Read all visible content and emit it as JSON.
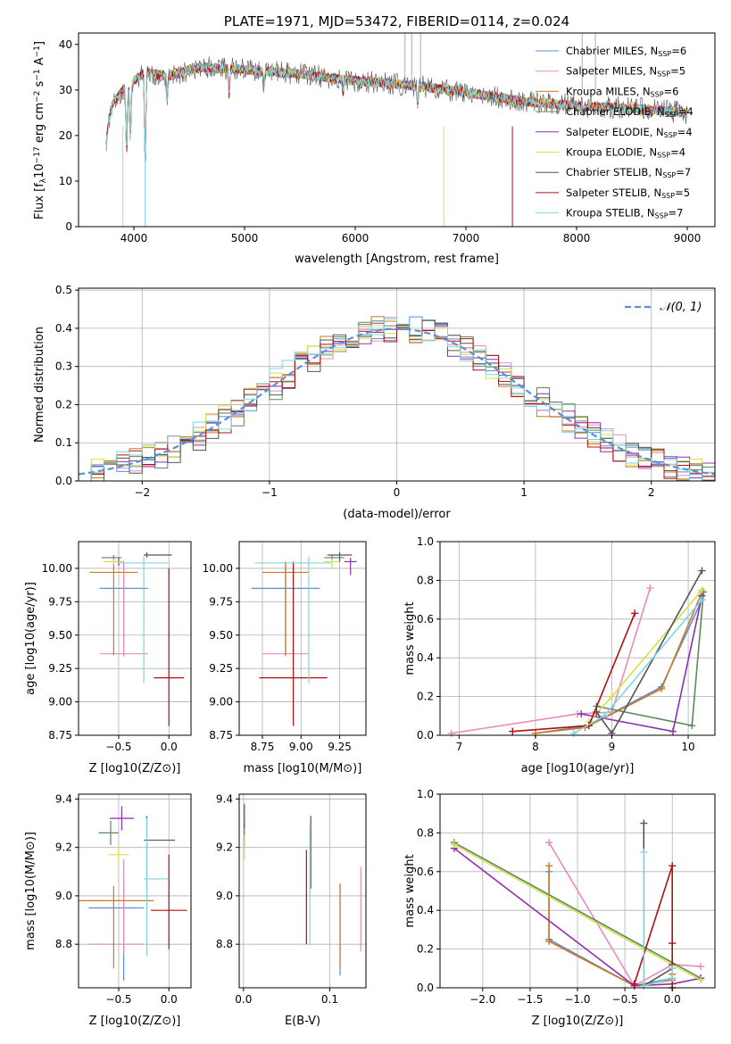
{
  "chart_data": [
    {
      "id": "spectrum",
      "type": "line",
      "title": "PLATE=1971, MJD=53472, FIBERID=0114, z=0.024",
      "xlabel": "wavelength [Angstrom, rest frame]",
      "ylabel_parts": [
        "Flux [f",
        "λ",
        "10",
        "−17",
        " erg cm",
        "−2",
        " s",
        "−1",
        " A",
        "−1",
        "]"
      ],
      "xlim": [
        3500,
        9250
      ],
      "ylim": [
        0,
        42.5
      ],
      "xticks": [
        4000,
        5000,
        6000,
        7000,
        8000,
        9000
      ],
      "yticks": [
        0,
        10,
        20,
        30,
        40
      ],
      "legend_position": "upper right",
      "continuum": {
        "x": [
          3750,
          3900,
          4100,
          4300,
          4600,
          5000,
          5500,
          6000,
          6500,
          7000,
          7500,
          8000,
          8500,
          9000
        ],
        "y": [
          25,
          30,
          34,
          33,
          35,
          34.5,
          33.5,
          32,
          31,
          29.5,
          27.5,
          26.5,
          26,
          25
        ]
      },
      "series": [
        {
          "name": "Chabrier MILES",
          "nssp": "6",
          "color": "#5b8fd8"
        },
        {
          "name": "Salpeter MILES",
          "nssp": "5",
          "color": "#e58cc0"
        },
        {
          "name": "Kroupa MILES",
          "nssp": "6",
          "color": "#cc7a1f"
        },
        {
          "name": "Chabrier ELODIE",
          "nssp": "4",
          "color": "#5a8a5a"
        },
        {
          "name": "Salpeter ELODIE",
          "nssp": "4",
          "color": "#8f2fb0"
        },
        {
          "name": "Kroupa ELODIE",
          "nssp": "4",
          "color": "#d4e04a"
        },
        {
          "name": "Chabrier STELIB",
          "nssp": "7",
          "color": "#555555"
        },
        {
          "name": "Salpeter STELIB",
          "nssp": "5",
          "color": "#b01010"
        },
        {
          "name": "Kroupa STELIB",
          "nssp": "7",
          "color": "#7fd6dc"
        }
      ],
      "nssp_label": [
        "N",
        "SSP",
        "="
      ]
    },
    {
      "id": "residuals",
      "type": "histogram",
      "xlabel": "(data-model)/error",
      "ylabel": "Normed distribution",
      "xlim": [
        -2.5,
        2.5
      ],
      "ylim": [
        0,
        0.505
      ],
      "xticks": [
        -2,
        -1,
        0,
        1,
        2
      ],
      "yticks": [
        0.0,
        0.1,
        0.2,
        0.3,
        0.4,
        0.5
      ],
      "legend": {
        "label": "𝒩(0, 1)",
        "color": "#5b8fd8",
        "position": "upper right"
      },
      "bin_width": 0.1,
      "colors": [
        "#5b8fd8",
        "#e58cc0",
        "#cc7a1f",
        "#5a8a5a",
        "#8f2fb0",
        "#d4e04a",
        "#555555",
        "#b01010",
        "#7fd6dc"
      ]
    },
    {
      "id": "age-vs-z",
      "type": "errorbar",
      "xlabel": "Z [log10(Z/Z⊙)]",
      "ylabel": "age  [log10(age/yr)]",
      "xlim": [
        -0.9,
        0.22
      ],
      "ylim": [
        8.75,
        10.2
      ],
      "xticks": [
        -0.5,
        0.0
      ],
      "yticks": [
        8.75,
        9.0,
        9.25,
        9.5,
        9.75,
        10.0
      ],
      "points": [
        {
          "x": -0.45,
          "y": 9.85,
          "xerr": [
            0.24,
            0.24
          ],
          "yerr": [
            0.5,
            0.2
          ],
          "color": "#5b8fd8"
        },
        {
          "x": -0.45,
          "y": 9.36,
          "xerr": [
            0.24,
            0.24
          ],
          "yerr": [
            0.02,
            0.68
          ],
          "color": "#e58cc0"
        },
        {
          "x": -0.55,
          "y": 9.97,
          "xerr": [
            0.24,
            0.24
          ],
          "yerr": [
            0.62,
            0.08
          ],
          "color": "#cc7a1f"
        },
        {
          "x": -0.55,
          "y": 10.08,
          "xerr": [
            0.12,
            0.08
          ],
          "yerr": [
            0.02,
            0.02
          ],
          "color": "#5a8a5a"
        },
        {
          "x": -0.5,
          "y": 10.05,
          "xerr": [
            0.05,
            0.05
          ],
          "yerr": [
            0.03,
            0.03
          ],
          "color": "#8f2fb0"
        },
        {
          "x": -0.55,
          "y": 10.05,
          "xerr": [
            0.1,
            0.1
          ],
          "yerr": [
            0.02,
            0.02
          ],
          "color": "#d4e04a"
        },
        {
          "x": -0.22,
          "y": 10.1,
          "xerr": [
            0.03,
            0.25
          ],
          "yerr": [
            0.02,
            0.02
          ],
          "color": "#555555"
        },
        {
          "x": 0.0,
          "y": 9.18,
          "xerr": [
            0.15,
            0.15
          ],
          "yerr": [
            0.36,
            0.82
          ],
          "color": "#b01010"
        },
        {
          "x": -0.25,
          "y": 10.04,
          "xerr": [
            0.25,
            0.25
          ],
          "yerr": [
            0.9,
            0.05
          ],
          "color": "#7fd6dc"
        }
      ]
    },
    {
      "id": "age-vs-mass",
      "type": "errorbar",
      "xlabel": "mass [log10(M/M⊙)]",
      "ylabel": "",
      "xlim": [
        8.6,
        9.42
      ],
      "ylim": [
        8.75,
        10.2
      ],
      "xticks": [
        8.75,
        9.0,
        9.25
      ],
      "yticks": [
        8.75,
        9.0,
        9.25,
        9.5,
        9.75,
        10.0
      ],
      "points": [
        {
          "x": 8.9,
          "y": 9.85,
          "xerr": [
            0.22,
            0.22
          ],
          "yerr": [
            0.5,
            0.2
          ],
          "color": "#5b8fd8"
        },
        {
          "x": 8.9,
          "y": 9.36,
          "xerr": [
            0.15,
            0.15
          ],
          "yerr": [
            0.02,
            0.68
          ],
          "color": "#e58cc0"
        },
        {
          "x": 8.9,
          "y": 9.97,
          "xerr": [
            0.15,
            0.15
          ],
          "yerr": [
            0.62,
            0.08
          ],
          "color": "#cc7a1f"
        },
        {
          "x": 9.2,
          "y": 10.08,
          "xerr": [
            0.05,
            0.08
          ],
          "yerr": [
            0.02,
            0.02
          ],
          "color": "#5a8a5a"
        },
        {
          "x": 9.32,
          "y": 10.05,
          "xerr": [
            0.04,
            0.04
          ],
          "yerr": [
            0.1,
            0.03
          ],
          "color": "#8f2fb0"
        },
        {
          "x": 9.2,
          "y": 10.05,
          "xerr": [
            0.05,
            0.05
          ],
          "yerr": [
            0.05,
            0.02
          ],
          "color": "#d4e04a"
        },
        {
          "x": 9.25,
          "y": 10.1,
          "xerr": [
            0.08,
            0.08
          ],
          "yerr": [
            0.05,
            0.02
          ],
          "color": "#555555"
        },
        {
          "x": 8.95,
          "y": 9.18,
          "xerr": [
            0.22,
            0.22
          ],
          "yerr": [
            0.36,
            0.87
          ],
          "color": "#b01010"
        },
        {
          "x": 9.05,
          "y": 10.04,
          "xerr": [
            0.35,
            0.15
          ],
          "yerr": [
            0.9,
            0.05
          ],
          "color": "#7fd6dc"
        }
      ]
    },
    {
      "id": "massweight-vs-age",
      "type": "line",
      "xlabel": "age  [log10(age/yr)]",
      "ylabel": "mass weight",
      "xlim": [
        6.75,
        10.35
      ],
      "ylim": [
        0,
        1.0
      ],
      "xticks": [
        7,
        8,
        9,
        10
      ],
      "yticks": [
        0.0,
        0.2,
        0.4,
        0.6,
        0.8,
        1.0
      ],
      "series": [
        {
          "color": "#5b8fd8",
          "x": [
            8.0,
            8.7,
            9.65,
            10.18
          ],
          "y": [
            0.01,
            0.05,
            0.25,
            0.7
          ]
        },
        {
          "color": "#e58cc0",
          "x": [
            6.9,
            8.55,
            9.0,
            9.5
          ],
          "y": [
            0.01,
            0.11,
            0.12,
            0.76
          ]
        },
        {
          "color": "#cc7a1f",
          "x": [
            8.0,
            8.65,
            9.65,
            10.18
          ],
          "y": [
            0.01,
            0.04,
            0.24,
            0.74
          ]
        },
        {
          "color": "#5a8a5a",
          "x": [
            8.8,
            10.05,
            10.2
          ],
          "y": [
            0.15,
            0.05,
            0.74
          ]
        },
        {
          "color": "#8f2fb0",
          "x": [
            8.6,
            9.8,
            10.18
          ],
          "y": [
            0.11,
            0.02,
            0.72
          ]
        },
        {
          "color": "#d4e04a",
          "x": [
            8.7,
            9.0,
            10.18
          ],
          "y": [
            0.07,
            0.2,
            0.75
          ]
        },
        {
          "color": "#555555",
          "x": [
            8.8,
            9.0,
            10.18
          ],
          "y": [
            0.12,
            0.01,
            0.85
          ]
        },
        {
          "color": "#b01010",
          "x": [
            7.7,
            8.7,
            9.3
          ],
          "y": [
            0.02,
            0.05,
            0.63
          ]
        },
        {
          "color": "#7fd6dc",
          "x": [
            8.5,
            8.9,
            10.18
          ],
          "y": [
            0.01,
            0.1,
            0.7
          ]
        }
      ]
    },
    {
      "id": "mass-vs-z",
      "type": "errorbar",
      "xlabel": "Z [log10(Z/Z⊙)]",
      "ylabel": "mass [log10(M/M⊙)]",
      "xlim": [
        -0.9,
        0.22
      ],
      "ylim": [
        8.62,
        9.42
      ],
      "xticks": [
        -0.5,
        0.0
      ],
      "yticks": [
        8.8,
        9.0,
        9.2,
        9.4
      ],
      "points": [
        {
          "x": -0.45,
          "y": 8.95,
          "xerr": [
            0.35,
            0.2
          ],
          "yerr": [
            0.3,
            0.12
          ],
          "color": "#5b8fd8"
        },
        {
          "x": -0.45,
          "y": 8.8,
          "xerr": [
            0.35,
            0.2
          ],
          "yerr": [
            0.04,
            0.35
          ],
          "color": "#e58cc0"
        },
        {
          "x": -0.55,
          "y": 8.98,
          "xerr": [
            0.35,
            0.4
          ],
          "yerr": [
            0.28,
            0.06
          ],
          "color": "#cc7a1f"
        },
        {
          "x": -0.58,
          "y": 9.26,
          "xerr": [
            0.12,
            0.08
          ],
          "yerr": [
            0.05,
            0.05
          ],
          "color": "#5a8a5a"
        },
        {
          "x": -0.47,
          "y": 9.32,
          "xerr": [
            0.12,
            0.12
          ],
          "yerr": [
            0.05,
            0.05
          ],
          "color": "#8f2fb0"
        },
        {
          "x": -0.5,
          "y": 9.17,
          "xerr": [
            0.1,
            0.1
          ],
          "yerr": [
            0.05,
            0.05
          ],
          "color": "#d4e04a"
        },
        {
          "x": -0.22,
          "y": 9.23,
          "xerr": [
            0.03,
            0.28
          ],
          "yerr": [
            0.2,
            0.1
          ],
          "color": "#555555"
        },
        {
          "x": 0.0,
          "y": 8.94,
          "xerr": [
            0.18,
            0.18
          ],
          "yerr": [
            0.16,
            0.23
          ],
          "color": "#b01010"
        },
        {
          "x": -0.22,
          "y": 9.07,
          "xerr": [
            0.03,
            0.22
          ],
          "yerr": [
            0.32,
            0.25
          ],
          "color": "#7fd6dc"
        }
      ]
    },
    {
      "id": "mass-vs-ebv",
      "type": "errorbar",
      "xlabel": "E(B-V)",
      "ylabel": "",
      "xlim": [
        -0.005,
        0.142
      ],
      "ylim": [
        8.62,
        9.42
      ],
      "xticks": [
        0.0,
        0.1
      ],
      "yticks": [
        8.8,
        9.0,
        9.2,
        9.4
      ],
      "points": [
        {
          "x": 0.112,
          "y": 8.95,
          "xerr": [
            0,
            0
          ],
          "yerr": [
            0.28,
            0.1
          ],
          "color": "#5b8fd8"
        },
        {
          "x": 0.136,
          "y": 8.95,
          "xerr": [
            0,
            0
          ],
          "yerr": [
            0.18,
            0.17
          ],
          "color": "#e58cc0"
        },
        {
          "x": 0.112,
          "y": 8.9,
          "xerr": [
            0,
            0
          ],
          "yerr": [
            0.2,
            0.15
          ],
          "color": "#cc7a1f"
        },
        {
          "x": 0.001,
          "y": 9.25,
          "xerr": [
            0,
            0
          ],
          "yerr": [
            0.05,
            0.05
          ],
          "color": "#5a8a5a"
        },
        {
          "x": 0.001,
          "y": 9.33,
          "xerr": [
            0,
            0
          ],
          "yerr": [
            0.05,
            0.05
          ],
          "color": "#8f2fb0"
        },
        {
          "x": 0.001,
          "y": 9.2,
          "xerr": [
            0,
            0
          ],
          "yerr": [
            0.05,
            0.05
          ],
          "color": "#d4e04a"
        },
        {
          "x": 0.078,
          "y": 9.18,
          "xerr": [
            0,
            0
          ],
          "yerr": [
            0.15,
            0.15
          ],
          "color": "#555555"
        },
        {
          "x": 0.073,
          "y": 9.0,
          "xerr": [
            0,
            0
          ],
          "yerr": [
            0.2,
            0.19
          ],
          "color": "#b01010"
        },
        {
          "x": 0.077,
          "y": 9.05,
          "xerr": [
            0,
            0
          ],
          "yerr": [
            0.25,
            0.24
          ],
          "color": "#7fd6dc"
        }
      ]
    },
    {
      "id": "massweight-vs-z",
      "type": "line",
      "xlabel": "Z [log10(Z/Z⊙)]",
      "ylabel": "mass weight",
      "xlim": [
        -2.45,
        0.45
      ],
      "ylim": [
        0,
        1.0
      ],
      "xticks": [
        -2.0,
        -1.5,
        -1.0,
        -0.5,
        0.0
      ],
      "yticks": [
        0.0,
        0.2,
        0.4,
        0.6,
        0.8,
        1.0
      ],
      "series": [
        {
          "color": "#5b8fd8",
          "x": [
            -1.3,
            -1.3,
            -0.4,
            0.0,
            0.0
          ],
          "y": [
            0.6,
            0.25,
            0.01,
            0.05,
            0.07
          ]
        },
        {
          "color": "#e58cc0",
          "x": [
            -1.3,
            -0.4,
            0.0,
            0.3
          ],
          "y": [
            0.75,
            0.01,
            0.12,
            0.11
          ]
        },
        {
          "color": "#cc7a1f",
          "x": [
            -1.3,
            -1.3,
            -0.4,
            0.0,
            0.0
          ],
          "y": [
            0.63,
            0.24,
            0.01,
            0.04,
            0.07
          ]
        },
        {
          "color": "#5a8a5a",
          "x": [
            -2.3,
            0.3
          ],
          "y": [
            0.75,
            0.05
          ]
        },
        {
          "color": "#8f2fb0",
          "x": [
            -2.3,
            -0.4,
            0.0,
            0.3
          ],
          "y": [
            0.72,
            0.01,
            0.02,
            0.05
          ]
        },
        {
          "color": "#d4e04a",
          "x": [
            -2.3,
            0.0,
            0.3
          ],
          "y": [
            0.74,
            0.12,
            0.04
          ]
        },
        {
          "color": "#555555",
          "x": [
            -0.3,
            -0.3,
            0.0,
            0.0
          ],
          "y": [
            0.85,
            0.01,
            0.1,
            0.12
          ]
        },
        {
          "color": "#b01010",
          "x": [
            -0.4,
            0.0,
            0.0,
            0.0
          ],
          "y": [
            0.02,
            0.63,
            0.23,
            0.0
          ]
        },
        {
          "color": "#7fd6dc",
          "x": [
            -0.3,
            -0.3,
            0.0,
            0.0
          ],
          "y": [
            0.7,
            0.01,
            0.05,
            0.1
          ]
        }
      ]
    }
  ]
}
